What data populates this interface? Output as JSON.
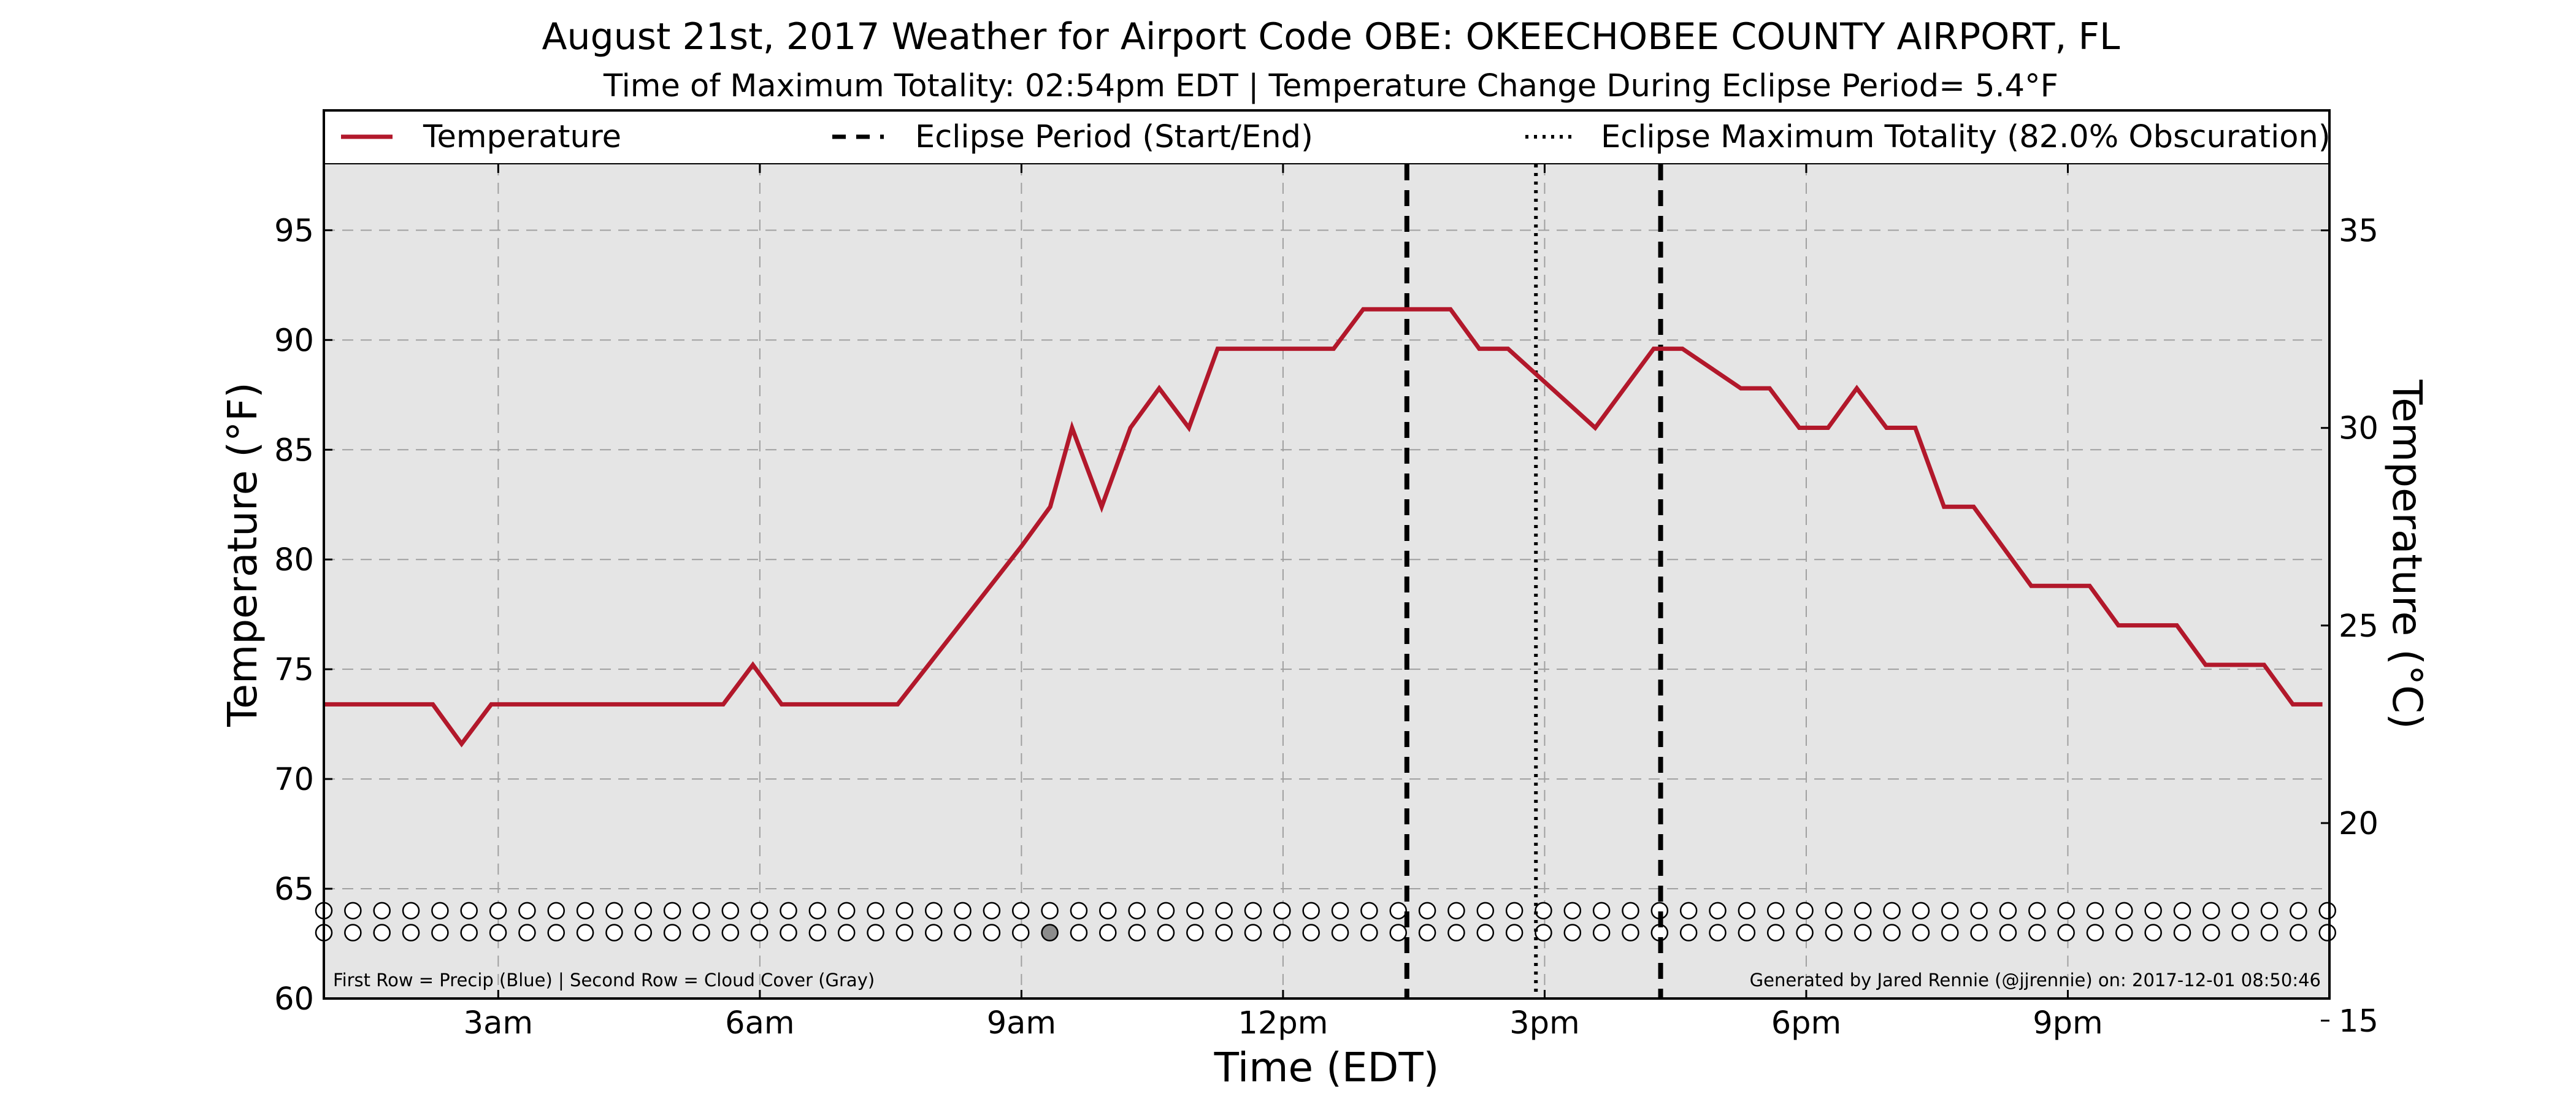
{
  "chart_data": {
    "type": "line",
    "title": "August 21st, 2017 Weather for Airport Code OBE: OKEECHOBEE COUNTY AIRPORT, FL",
    "subtitle": "Time of Maximum Totality: 02:54pm EDT | Temperature Change During Eclipse Period= 5.4°F",
    "xlabel": "Time (EDT)",
    "ylabel": "Temperature (°F)",
    "ylabel_right": "Temperature (°C)",
    "x_unit": "hours since midnight (EDT)",
    "xlim": [
      1,
      24
    ],
    "ylim": [
      60,
      98
    ],
    "ylim_right": [
      15.56,
      36.67
    ],
    "x_ticks": [
      {
        "value": 3,
        "label": "3am"
      },
      {
        "value": 6,
        "label": "6am"
      },
      {
        "value": 9,
        "label": "9am"
      },
      {
        "value": 12,
        "label": "12pm"
      },
      {
        "value": 15,
        "label": "3pm"
      },
      {
        "value": 18,
        "label": "6pm"
      },
      {
        "value": 21,
        "label": "9pm"
      }
    ],
    "y_ticks": [
      60,
      65,
      70,
      75,
      80,
      85,
      90,
      95
    ],
    "y_ticks_right": [
      15,
      20,
      25,
      30,
      35
    ],
    "grid": true,
    "legend": {
      "placement": "top, above plot",
      "items": [
        {
          "label": "Temperature",
          "style": "solid",
          "color": "#b2182b"
        },
        {
          "label": "Eclipse Period (Start/End)",
          "style": "dashed",
          "color": "#000000"
        },
        {
          "label": "Eclipse Maximum Totality (82.0% Obscuration)",
          "style": "dotted",
          "color": "#000000"
        }
      ]
    },
    "series": [
      {
        "name": "Temperature",
        "color": "#b2182b",
        "x": [
          1,
          2.25,
          2.58,
          2.92,
          5.58,
          5.92,
          6.25,
          7.58,
          9,
          9.33,
          9.58,
          9.92,
          10.25,
          10.58,
          10.92,
          11.25,
          12.58,
          12.92,
          13.92,
          14.25,
          14.58,
          15.58,
          16.25,
          16.58,
          17.25,
          17.58,
          17.92,
          18.25,
          18.58,
          18.92,
          19.25,
          19.58,
          19.92,
          20.25,
          20.58,
          20.92,
          21.25,
          21.58,
          21.92,
          22.25,
          22.58,
          22.92,
          23.25,
          23.58,
          23.92
        ],
        "values": [
          73.4,
          73.4,
          71.6,
          73.4,
          73.4,
          75.2,
          73.4,
          73.4,
          80.6,
          82.4,
          86.0,
          82.4,
          86.0,
          87.8,
          86.0,
          89.6,
          89.6,
          91.4,
          91.4,
          89.6,
          89.6,
          86.0,
          89.6,
          89.6,
          87.8,
          87.8,
          86.0,
          86.0,
          87.8,
          86.0,
          86.0,
          82.4,
          82.4,
          80.6,
          78.8,
          78.8,
          78.8,
          77.0,
          77.0,
          77.0,
          75.2,
          75.2,
          75.2,
          73.4,
          73.4
        ]
      }
    ],
    "eclipse_start": 13.42,
    "eclipse_end": 16.33,
    "eclipse_max": 14.9,
    "hourly_markers": {
      "start_hour": 1,
      "interval_hours": 0.333,
      "precip_row_y": 64,
      "cloud_row_y": 63,
      "cloud_cover_hours": [
        9.33,
        9.67,
        10,
        10.33,
        10.67,
        11,
        11.33,
        11.67,
        12,
        12.33,
        12.67,
        13,
        13.33,
        13.67,
        14,
        14.33,
        14.67,
        15.33,
        16.33,
        16.67,
        17.33,
        17.67,
        18,
        18.33,
        18.67
      ],
      "precip_hours": []
    },
    "annotations": {
      "left": "First Row = Precip (Blue) | Second Row = Cloud Cover (Gray)",
      "right": "Generated by Jared Rennie (@jjrennie) on: 2017-12-01 08:50:46"
    }
  }
}
